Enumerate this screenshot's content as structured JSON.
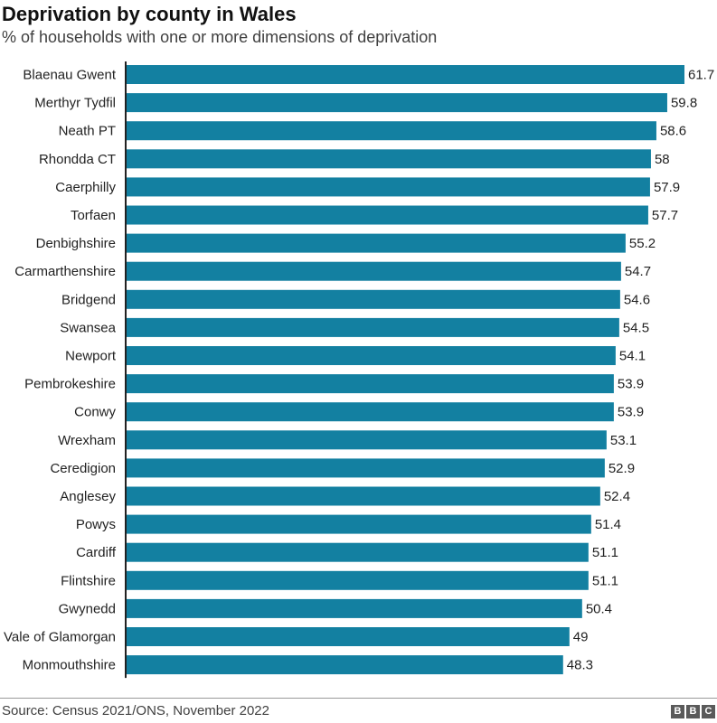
{
  "chart_data": {
    "type": "bar",
    "orientation": "horizontal",
    "title": "Deprivation by county in Wales",
    "subtitle": "% of households with one or more dimensions of deprivation",
    "xlabel": "",
    "ylabel": "",
    "xlim": [
      0,
      61.7
    ],
    "grid": false,
    "bar_color": "#1380A1",
    "categories": [
      "Blaenau Gwent",
      "Merthyr Tydfil",
      "Neath PT",
      "Rhondda CT",
      "Caerphilly",
      "Torfaen",
      "Denbighshire",
      "Carmarthenshire",
      "Bridgend",
      "Swansea",
      "Newport",
      "Pembrokeshire",
      "Conwy",
      "Wrexham",
      "Ceredigion",
      "Anglesey",
      "Powys",
      "Cardiff",
      "Flintshire",
      "Gwynedd",
      "Vale of Glamorgan",
      "Monmouthshire"
    ],
    "values": [
      61.7,
      59.8,
      58.6,
      58,
      57.9,
      57.7,
      55.2,
      54.7,
      54.6,
      54.5,
      54.1,
      53.9,
      53.9,
      53.1,
      52.9,
      52.4,
      51.4,
      51.1,
      51.1,
      50.4,
      49,
      48.3
    ],
    "value_labels": [
      "61.7",
      "59.8",
      "58.6",
      "58",
      "57.9",
      "57.7",
      "55.2",
      "54.7",
      "54.6",
      "54.5",
      "54.1",
      "53.9",
      "53.9",
      "53.1",
      "52.9",
      "52.4",
      "51.4",
      "51.1",
      "51.1",
      "50.4",
      "49",
      "48.3"
    ]
  },
  "footer": {
    "source": "Source: Census 2021/ONS, November 2022",
    "logo": [
      "B",
      "B",
      "C"
    ]
  }
}
